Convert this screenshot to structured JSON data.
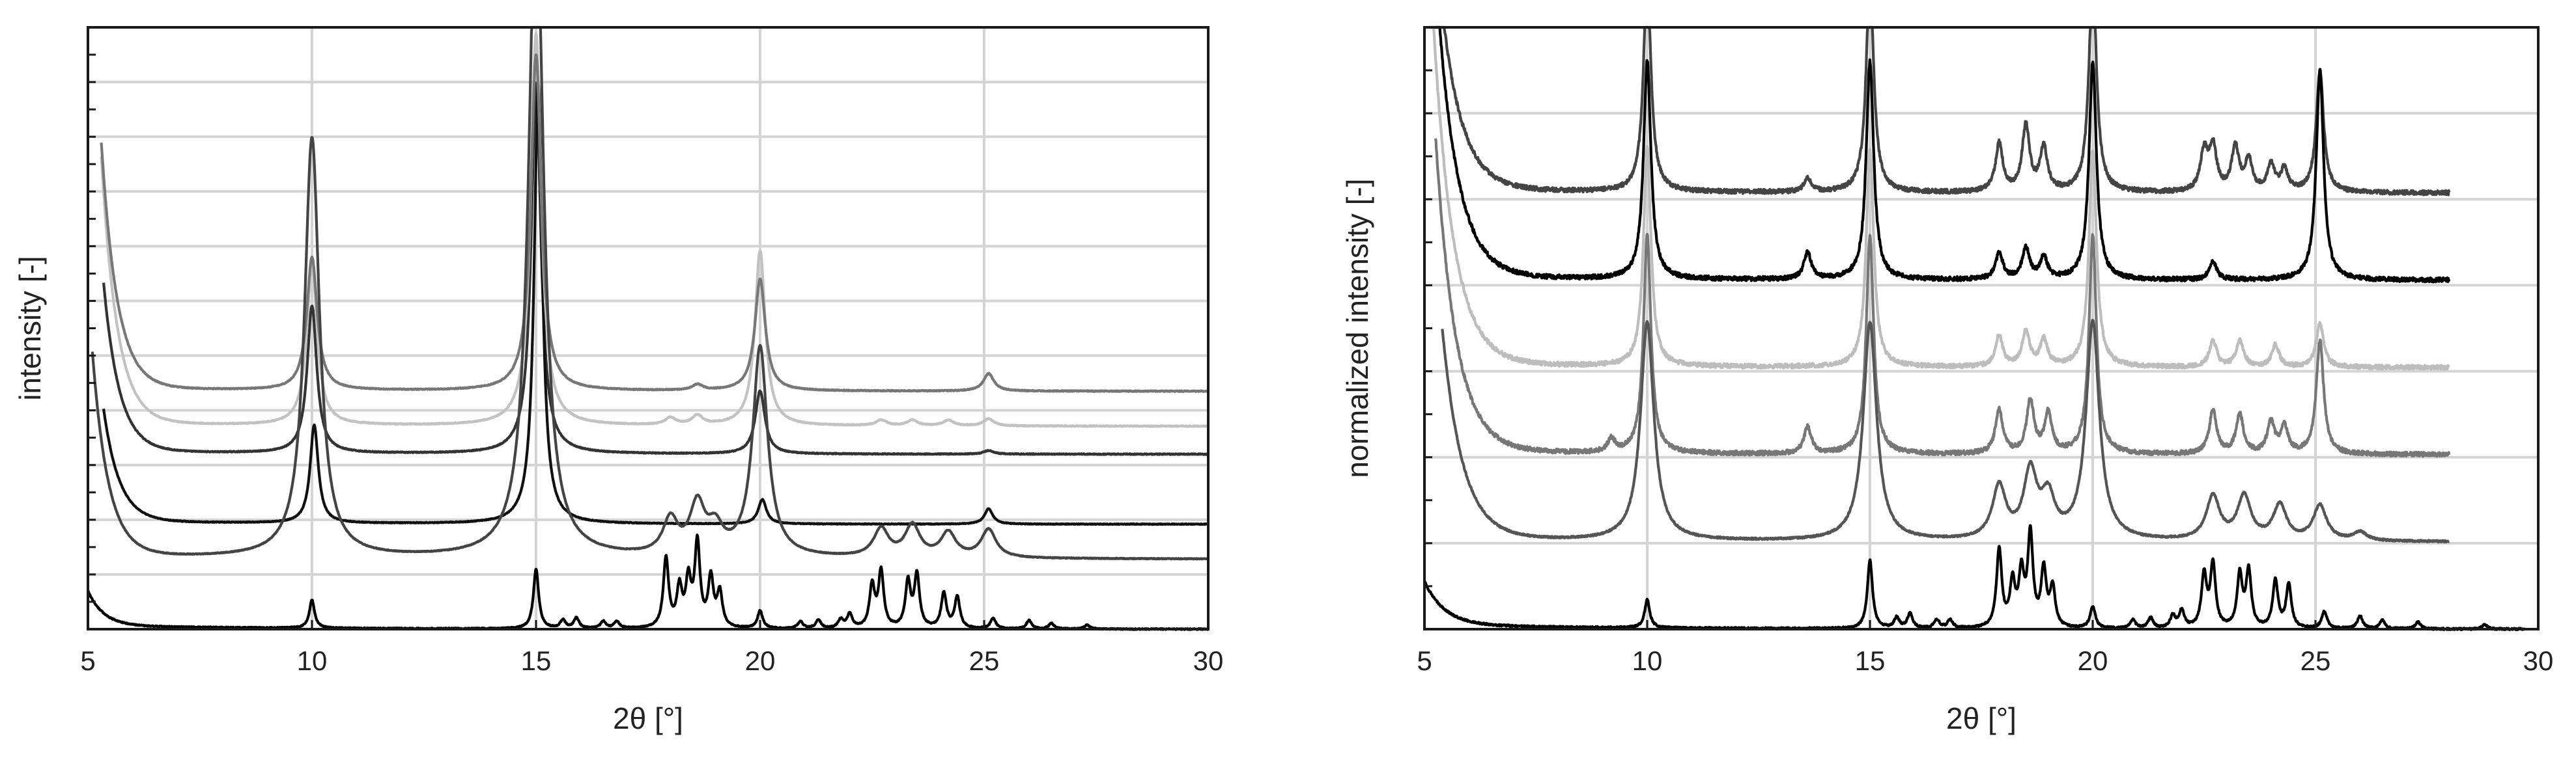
{
  "chart_data": [
    {
      "type": "line",
      "xlabel": "2θ [°]",
      "ylabel": "intensity [-]",
      "xlim": [
        5,
        30
      ],
      "x_ticks": [
        "5",
        "10",
        "15",
        "20",
        "25",
        "30"
      ],
      "grid": true,
      "y_tick_labels": false,
      "y_gridlines": 11,
      "peaks_x": [
        10.0,
        15.0,
        18.0,
        18.6,
        20.0,
        22.7,
        23.4,
        24.2,
        25.1
      ],
      "series": [
        {
          "offset": 2.5,
          "baseline_to": 30,
          "color": "#333333",
          "peaks": [
            [
              10.0,
              2.1
            ],
            [
              15.0,
              5.3
            ],
            [
              20.0,
              0.9
            ],
            [
              25.1,
              0.05
            ]
          ],
          "peak_width": 0.13,
          "noise": 0.012
        },
        {
          "offset": 1.5,
          "baseline_to": 30,
          "color": "#111111",
          "peaks": [
            [
              10.05,
              1.4
            ],
            [
              15.05,
              6.3
            ],
            [
              20.05,
              0.35
            ],
            [
              25.1,
              0.22
            ]
          ],
          "peak_width": 0.11,
          "noise": 0.01
        },
        {
          "offset": 2.9,
          "baseline_to": 30,
          "color": "#c2c2c2",
          "peaks": [
            [
              10.0,
              2.3
            ],
            [
              15.0,
              5.6
            ],
            [
              18.0,
              0.1
            ],
            [
              18.6,
              0.13
            ],
            [
              20.0,
              2.5
            ],
            [
              22.7,
              0.08
            ],
            [
              23.4,
              0.08
            ],
            [
              24.2,
              0.08
            ],
            [
              25.1,
              0.1
            ]
          ],
          "peak_width": 0.14,
          "noise": 0.012
        },
        {
          "offset": 3.4,
          "baseline_to": 30,
          "color": "#777777",
          "peaks": [
            [
              10.0,
              1.9
            ],
            [
              15.0,
              4.8
            ],
            [
              18.6,
              0.08
            ],
            [
              20.0,
              1.6
            ],
            [
              25.1,
              0.25
            ]
          ],
          "peak_width": 0.14,
          "noise": 0.012
        },
        {
          "offset": 1.0,
          "baseline_to": 30,
          "color": "#444444",
          "peaks": [
            [
              10.0,
              6.0
            ],
            [
              15.0,
              9.5
            ],
            [
              18.0,
              0.5
            ],
            [
              18.6,
              0.7
            ],
            [
              19.0,
              0.35
            ],
            [
              20.0,
              3.0
            ],
            [
              22.7,
              0.4
            ],
            [
              23.4,
              0.45
            ],
            [
              24.2,
              0.35
            ],
            [
              25.1,
              0.4
            ]
          ],
          "peak_width": 0.2,
          "noise": 0.01
        },
        {
          "offset": 0.0,
          "baseline_to": 30,
          "color": "#000000",
          "peaks": [
            [
              10.0,
              0.4
            ],
            [
              15.0,
              0.85
            ],
            [
              15.6,
              0.12
            ],
            [
              15.9,
              0.15
            ],
            [
              16.5,
              0.1
            ],
            [
              16.8,
              0.1
            ],
            [
              17.9,
              1.0
            ],
            [
              18.2,
              0.55
            ],
            [
              18.4,
              0.65
            ],
            [
              18.6,
              1.2
            ],
            [
              18.9,
              0.7
            ],
            [
              19.1,
              0.5
            ],
            [
              20.0,
              0.25
            ],
            [
              20.9,
              0.1
            ],
            [
              21.3,
              0.12
            ],
            [
              21.8,
              0.12
            ],
            [
              22.0,
              0.2
            ],
            [
              22.5,
              0.6
            ],
            [
              22.7,
              0.8
            ],
            [
              23.3,
              0.65
            ],
            [
              23.5,
              0.75
            ],
            [
              24.1,
              0.5
            ],
            [
              24.4,
              0.45
            ],
            [
              25.2,
              0.15
            ],
            [
              26.0,
              0.12
            ],
            [
              26.5,
              0.08
            ],
            [
              27.3,
              0.06
            ]
          ],
          "peak_width": 0.07,
          "noise": 0.015
        }
      ]
    },
    {
      "type": "line",
      "xlabel": "2θ [°]",
      "ylabel": "normalized  intensity [-]",
      "xlim": [
        5,
        30
      ],
      "x_ticks": [
        "5",
        "10",
        "15",
        "20",
        "25",
        "30"
      ],
      "grid": true,
      "y_tick_labels": false,
      "y_gridlines": 7,
      "series": [
        {
          "offset": 5.0,
          "baseline_to": 28,
          "color": "#444444",
          "peaks": [
            [
              10.0,
              2.5
            ],
            [
              13.6,
              0.15
            ],
            [
              15.0,
              2.5
            ],
            [
              17.9,
              0.55
            ],
            [
              18.5,
              0.75
            ],
            [
              18.9,
              0.5
            ],
            [
              20.0,
              2.5
            ],
            [
              22.5,
              0.45
            ],
            [
              22.7,
              0.5
            ],
            [
              23.2,
              0.5
            ],
            [
              23.5,
              0.35
            ],
            [
              24.0,
              0.3
            ],
            [
              24.3,
              0.25
            ],
            [
              25.1,
              1.4
            ]
          ],
          "peak_width": 0.1,
          "noise": 0.05
        },
        {
          "offset": 4.0,
          "baseline_to": 28,
          "color": "#000000",
          "peaks": [
            [
              10.0,
              2.5
            ],
            [
              13.6,
              0.3
            ],
            [
              15.0,
              2.5
            ],
            [
              17.9,
              0.3
            ],
            [
              18.5,
              0.35
            ],
            [
              18.9,
              0.25
            ],
            [
              20.0,
              2.5
            ],
            [
              22.7,
              0.2
            ],
            [
              25.1,
              2.4
            ]
          ],
          "peak_width": 0.1,
          "noise": 0.05
        },
        {
          "offset": 3.0,
          "baseline_to": 28,
          "color": "#bdbdbd",
          "peaks": [
            [
              10.0,
              2.5
            ],
            [
              15.0,
              2.5
            ],
            [
              17.9,
              0.35
            ],
            [
              18.5,
              0.4
            ],
            [
              18.9,
              0.3
            ],
            [
              20.0,
              2.5
            ],
            [
              22.7,
              0.3
            ],
            [
              23.3,
              0.3
            ],
            [
              24.1,
              0.25
            ],
            [
              25.1,
              0.5
            ]
          ],
          "peak_width": 0.1,
          "noise": 0.05
        },
        {
          "offset": 2.0,
          "baseline_to": 28,
          "color": "#777777",
          "peaks": [
            [
              9.2,
              0.15
            ],
            [
              10.0,
              2.5
            ],
            [
              13.6,
              0.3
            ],
            [
              15.0,
              2.5
            ],
            [
              17.9,
              0.5
            ],
            [
              18.6,
              0.6
            ],
            [
              19.0,
              0.45
            ],
            [
              20.0,
              2.5
            ],
            [
              22.7,
              0.5
            ],
            [
              23.3,
              0.45
            ],
            [
              24.0,
              0.35
            ],
            [
              24.3,
              0.3
            ],
            [
              25.1,
              1.3
            ]
          ],
          "peak_width": 0.1,
          "noise": 0.05
        },
        {
          "offset": 1.0,
          "baseline_to": 28,
          "color": "#555555",
          "peaks": [
            [
              10.0,
              2.5
            ],
            [
              15.0,
              2.5
            ],
            [
              17.9,
              0.6
            ],
            [
              18.6,
              0.75
            ],
            [
              19.0,
              0.45
            ],
            [
              20.0,
              2.5
            ],
            [
              22.7,
              0.5
            ],
            [
              23.4,
              0.5
            ],
            [
              24.2,
              0.4
            ],
            [
              25.1,
              0.4
            ],
            [
              26.0,
              0.1
            ]
          ],
          "peak_width": 0.18,
          "noise": 0.02
        },
        {
          "offset": 0.0,
          "baseline_to": 29.7,
          "color": "#000000",
          "peaks": [
            [
              10.0,
              0.32
            ],
            [
              15.0,
              0.78
            ],
            [
              15.6,
              0.12
            ],
            [
              15.9,
              0.17
            ],
            [
              16.5,
              0.1
            ],
            [
              16.8,
              0.1
            ],
            [
              17.9,
              0.9
            ],
            [
              18.2,
              0.5
            ],
            [
              18.4,
              0.6
            ],
            [
              18.6,
              1.05
            ],
            [
              18.9,
              0.65
            ],
            [
              19.1,
              0.45
            ],
            [
              20.0,
              0.25
            ],
            [
              20.9,
              0.1
            ],
            [
              21.3,
              0.12
            ],
            [
              21.8,
              0.14
            ],
            [
              22.0,
              0.2
            ],
            [
              22.5,
              0.6
            ],
            [
              22.7,
              0.72
            ],
            [
              23.3,
              0.6
            ],
            [
              23.5,
              0.65
            ],
            [
              24.1,
              0.55
            ],
            [
              24.4,
              0.5
            ],
            [
              25.2,
              0.2
            ],
            [
              26.0,
              0.15
            ],
            [
              26.5,
              0.1
            ],
            [
              27.3,
              0.08
            ],
            [
              28.8,
              0.05
            ]
          ],
          "peak_width": 0.07,
          "noise": 0.02
        }
      ]
    }
  ]
}
